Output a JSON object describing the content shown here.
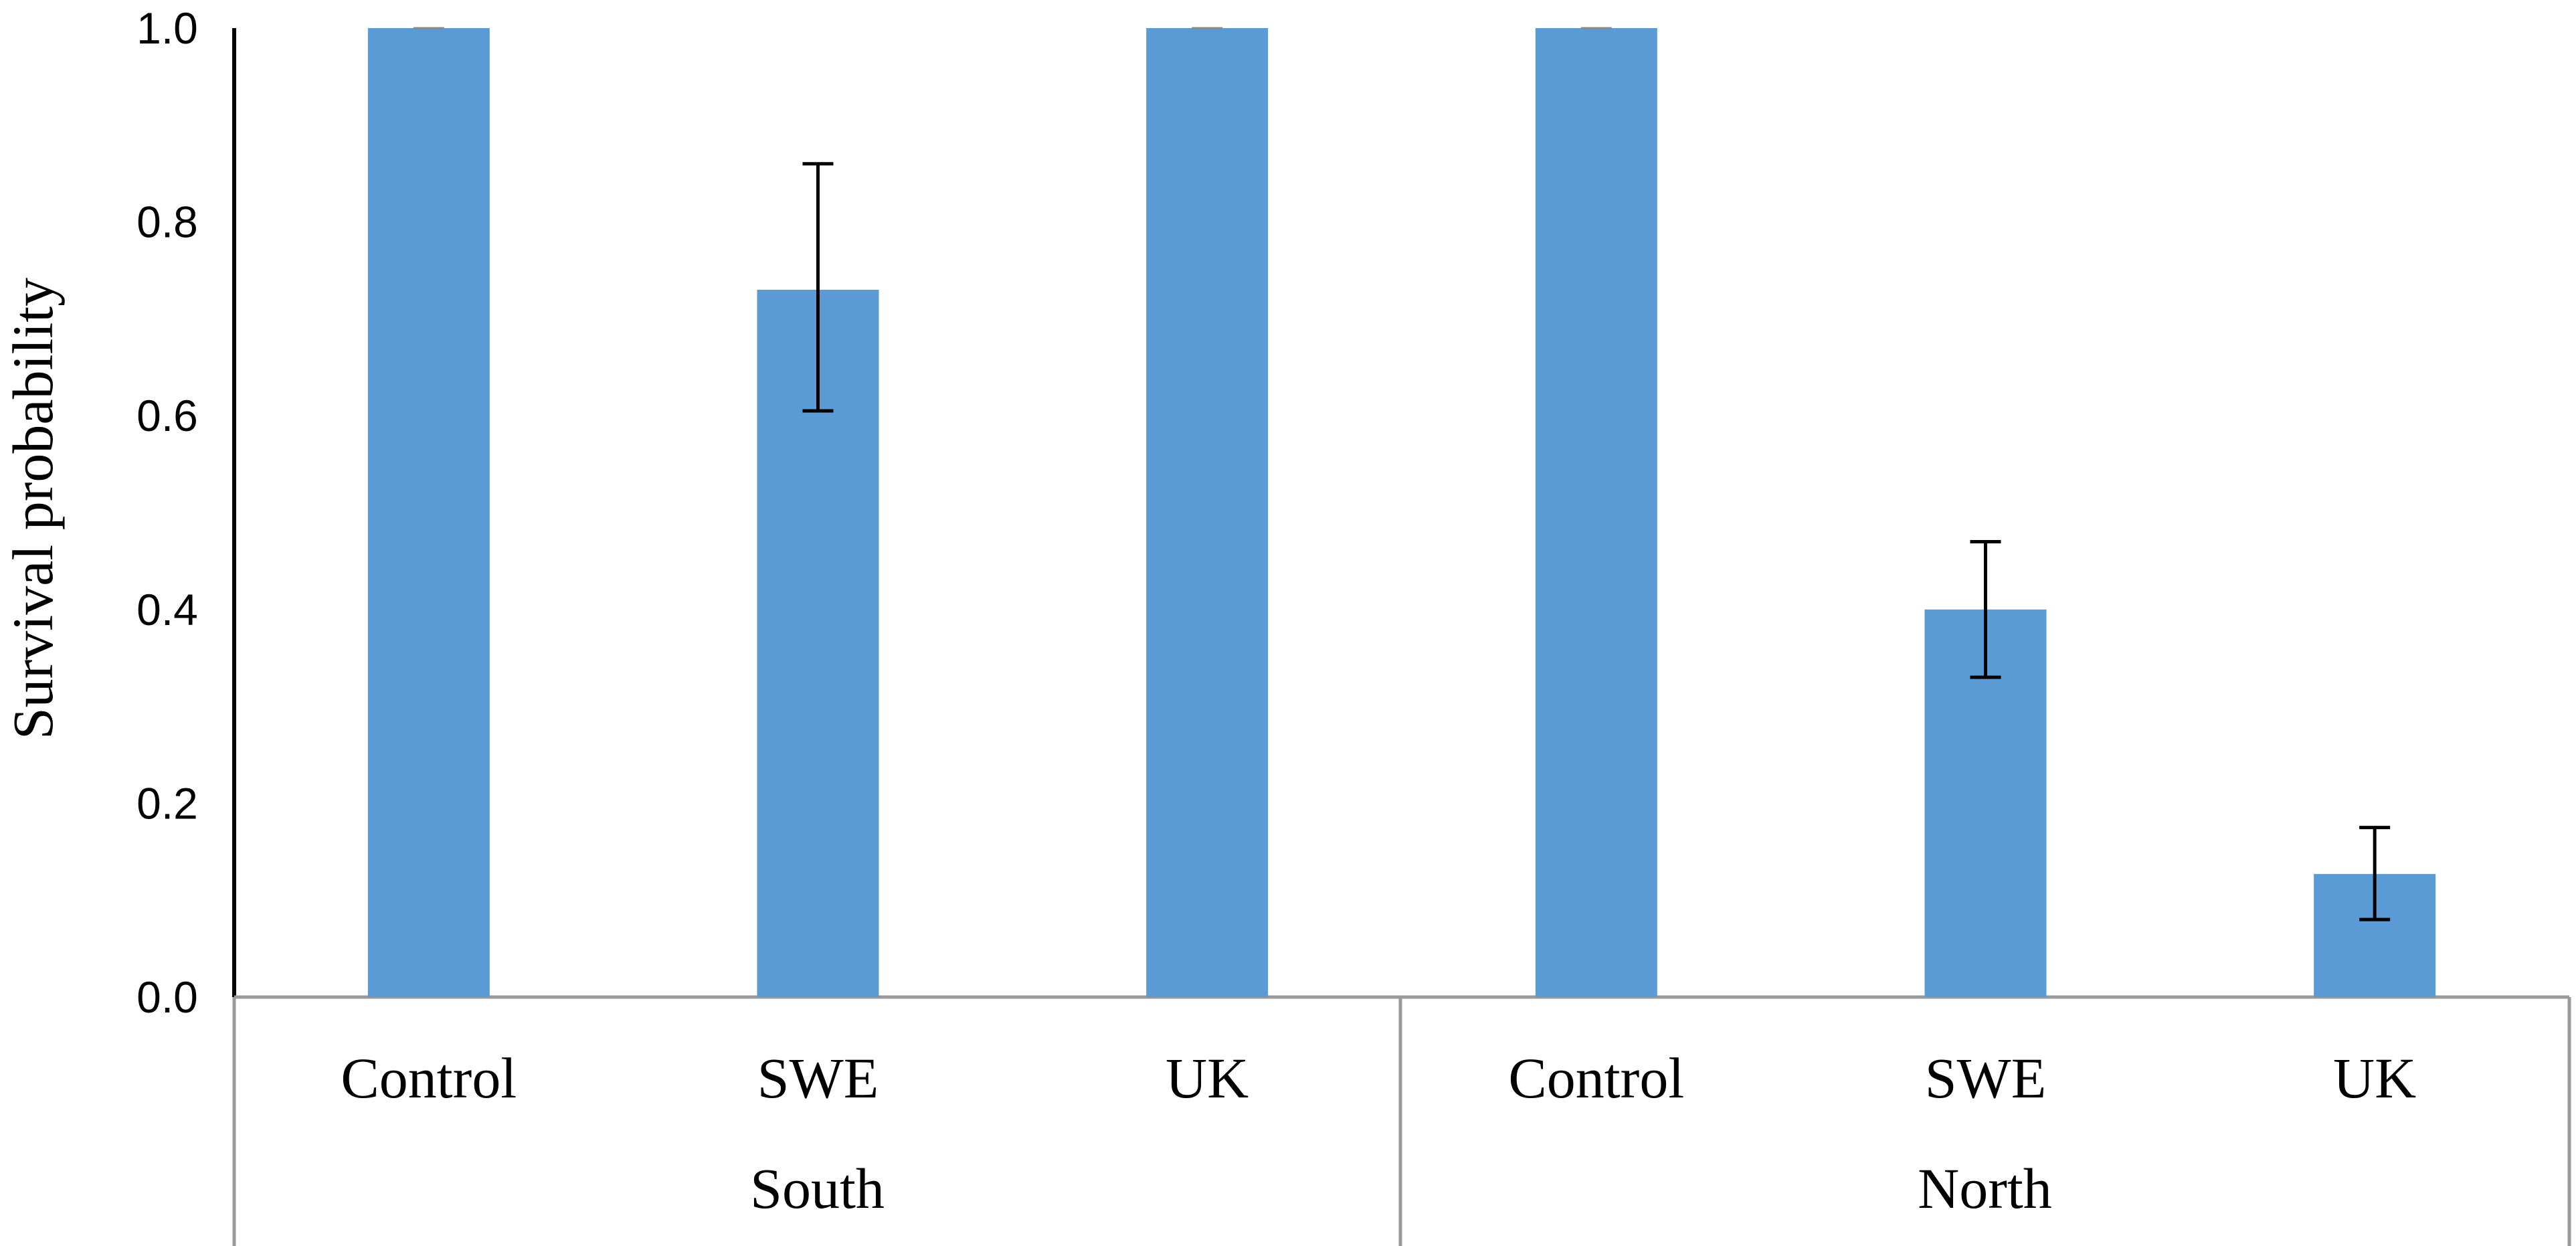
{
  "chart_data": {
    "type": "bar",
    "title": "",
    "xlabel": "",
    "ylabel": "Survival probability",
    "ylim": [
      0.0,
      1.0
    ],
    "yticks": [
      "0.0",
      "0.2",
      "0.4",
      "0.6",
      "0.8",
      "1.0"
    ],
    "grid": false,
    "legend": "none",
    "bar_color": "#5b9bd5",
    "errorbar_color": "#000000",
    "groups": [
      {
        "label": "South",
        "categories": [
          "Control",
          "SWE",
          "UK"
        ],
        "values": [
          1.0,
          0.73,
          1.0
        ],
        "error_low": [
          1.0,
          0.605,
          1.0
        ],
        "error_high": [
          1.0,
          0.86,
          1.0
        ]
      },
      {
        "label": "North",
        "categories": [
          "Control",
          "SWE",
          "UK"
        ],
        "values": [
          1.0,
          0.4,
          0.127
        ],
        "error_low": [
          1.0,
          0.33,
          0.08
        ],
        "error_high": [
          1.0,
          0.47,
          0.175
        ]
      }
    ]
  }
}
